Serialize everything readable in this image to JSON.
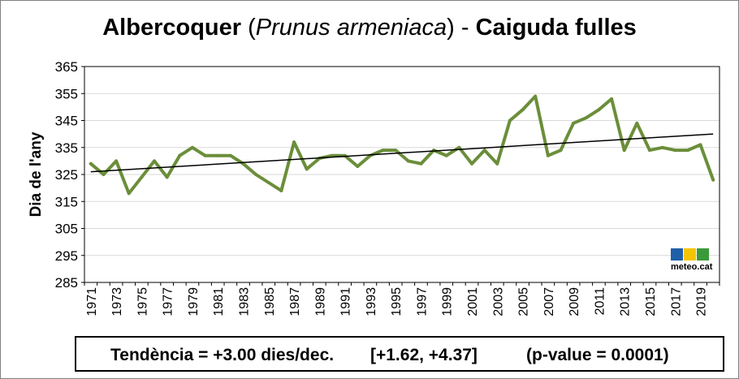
{
  "title": {
    "part1": "Albercoquer",
    "part2": " (",
    "part3": "Prunus armeniaca",
    "part4": ") - ",
    "part5": "Caiguda fulles"
  },
  "trend_box": {
    "text1": "Tendència = +3.00 dies/dec.",
    "text2": "[+1.62, +4.37]",
    "text3": "(p-value = 0.0001)"
  },
  "logo": {
    "text": "meteo.cat"
  },
  "colors": {
    "series": "#6b8e3a",
    "trend": "#000000",
    "grid": "#d9d9d9"
  },
  "chart_data": {
    "type": "line",
    "title": "Albercoquer (Prunus armeniaca) - Caiguda fulles",
    "xlabel": "",
    "ylabel": "Dia de l'any",
    "ylim": [
      285,
      365
    ],
    "yticks": [
      285,
      295,
      305,
      315,
      325,
      335,
      345,
      355,
      365
    ],
    "xlim": [
      1971,
      2020
    ],
    "xtick_labels": [
      "1971",
      "1973",
      "1975",
      "1977",
      "1979",
      "1981",
      "1983",
      "1985",
      "1987",
      "1989",
      "1991",
      "1993",
      "1995",
      "1997",
      "1999",
      "2001",
      "2003",
      "2005",
      "2007",
      "2009",
      "2011",
      "2013",
      "2015",
      "2017",
      "2019"
    ],
    "grid": true,
    "x": [
      1971,
      1972,
      1973,
      1974,
      1975,
      1976,
      1977,
      1978,
      1979,
      1980,
      1981,
      1982,
      1983,
      1984,
      1985,
      1986,
      1987,
      1988,
      1989,
      1990,
      1991,
      1992,
      1993,
      1994,
      1995,
      1996,
      1997,
      1998,
      1999,
      2000,
      2001,
      2002,
      2003,
      2004,
      2005,
      2006,
      2007,
      2008,
      2009,
      2010,
      2011,
      2012,
      2013,
      2014,
      2015,
      2016,
      2017,
      2018,
      2019,
      2020
    ],
    "series": [
      {
        "values": [
          329,
          325,
          330,
          318,
          324,
          330,
          324,
          332,
          335,
          332,
          332,
          332,
          329,
          325,
          322,
          319,
          337,
          327,
          331,
          332,
          332,
          328,
          332,
          334,
          334,
          330,
          329,
          334,
          332,
          335,
          329,
          334,
          329,
          345,
          349,
          354,
          332,
          334,
          344,
          346,
          349,
          353,
          334,
          344,
          334,
          335,
          334,
          334,
          336,
          323
        ]
      }
    ],
    "trend_line": {
      "x": [
        1971,
        2020
      ],
      "y": [
        326,
        340
      ]
    }
  }
}
